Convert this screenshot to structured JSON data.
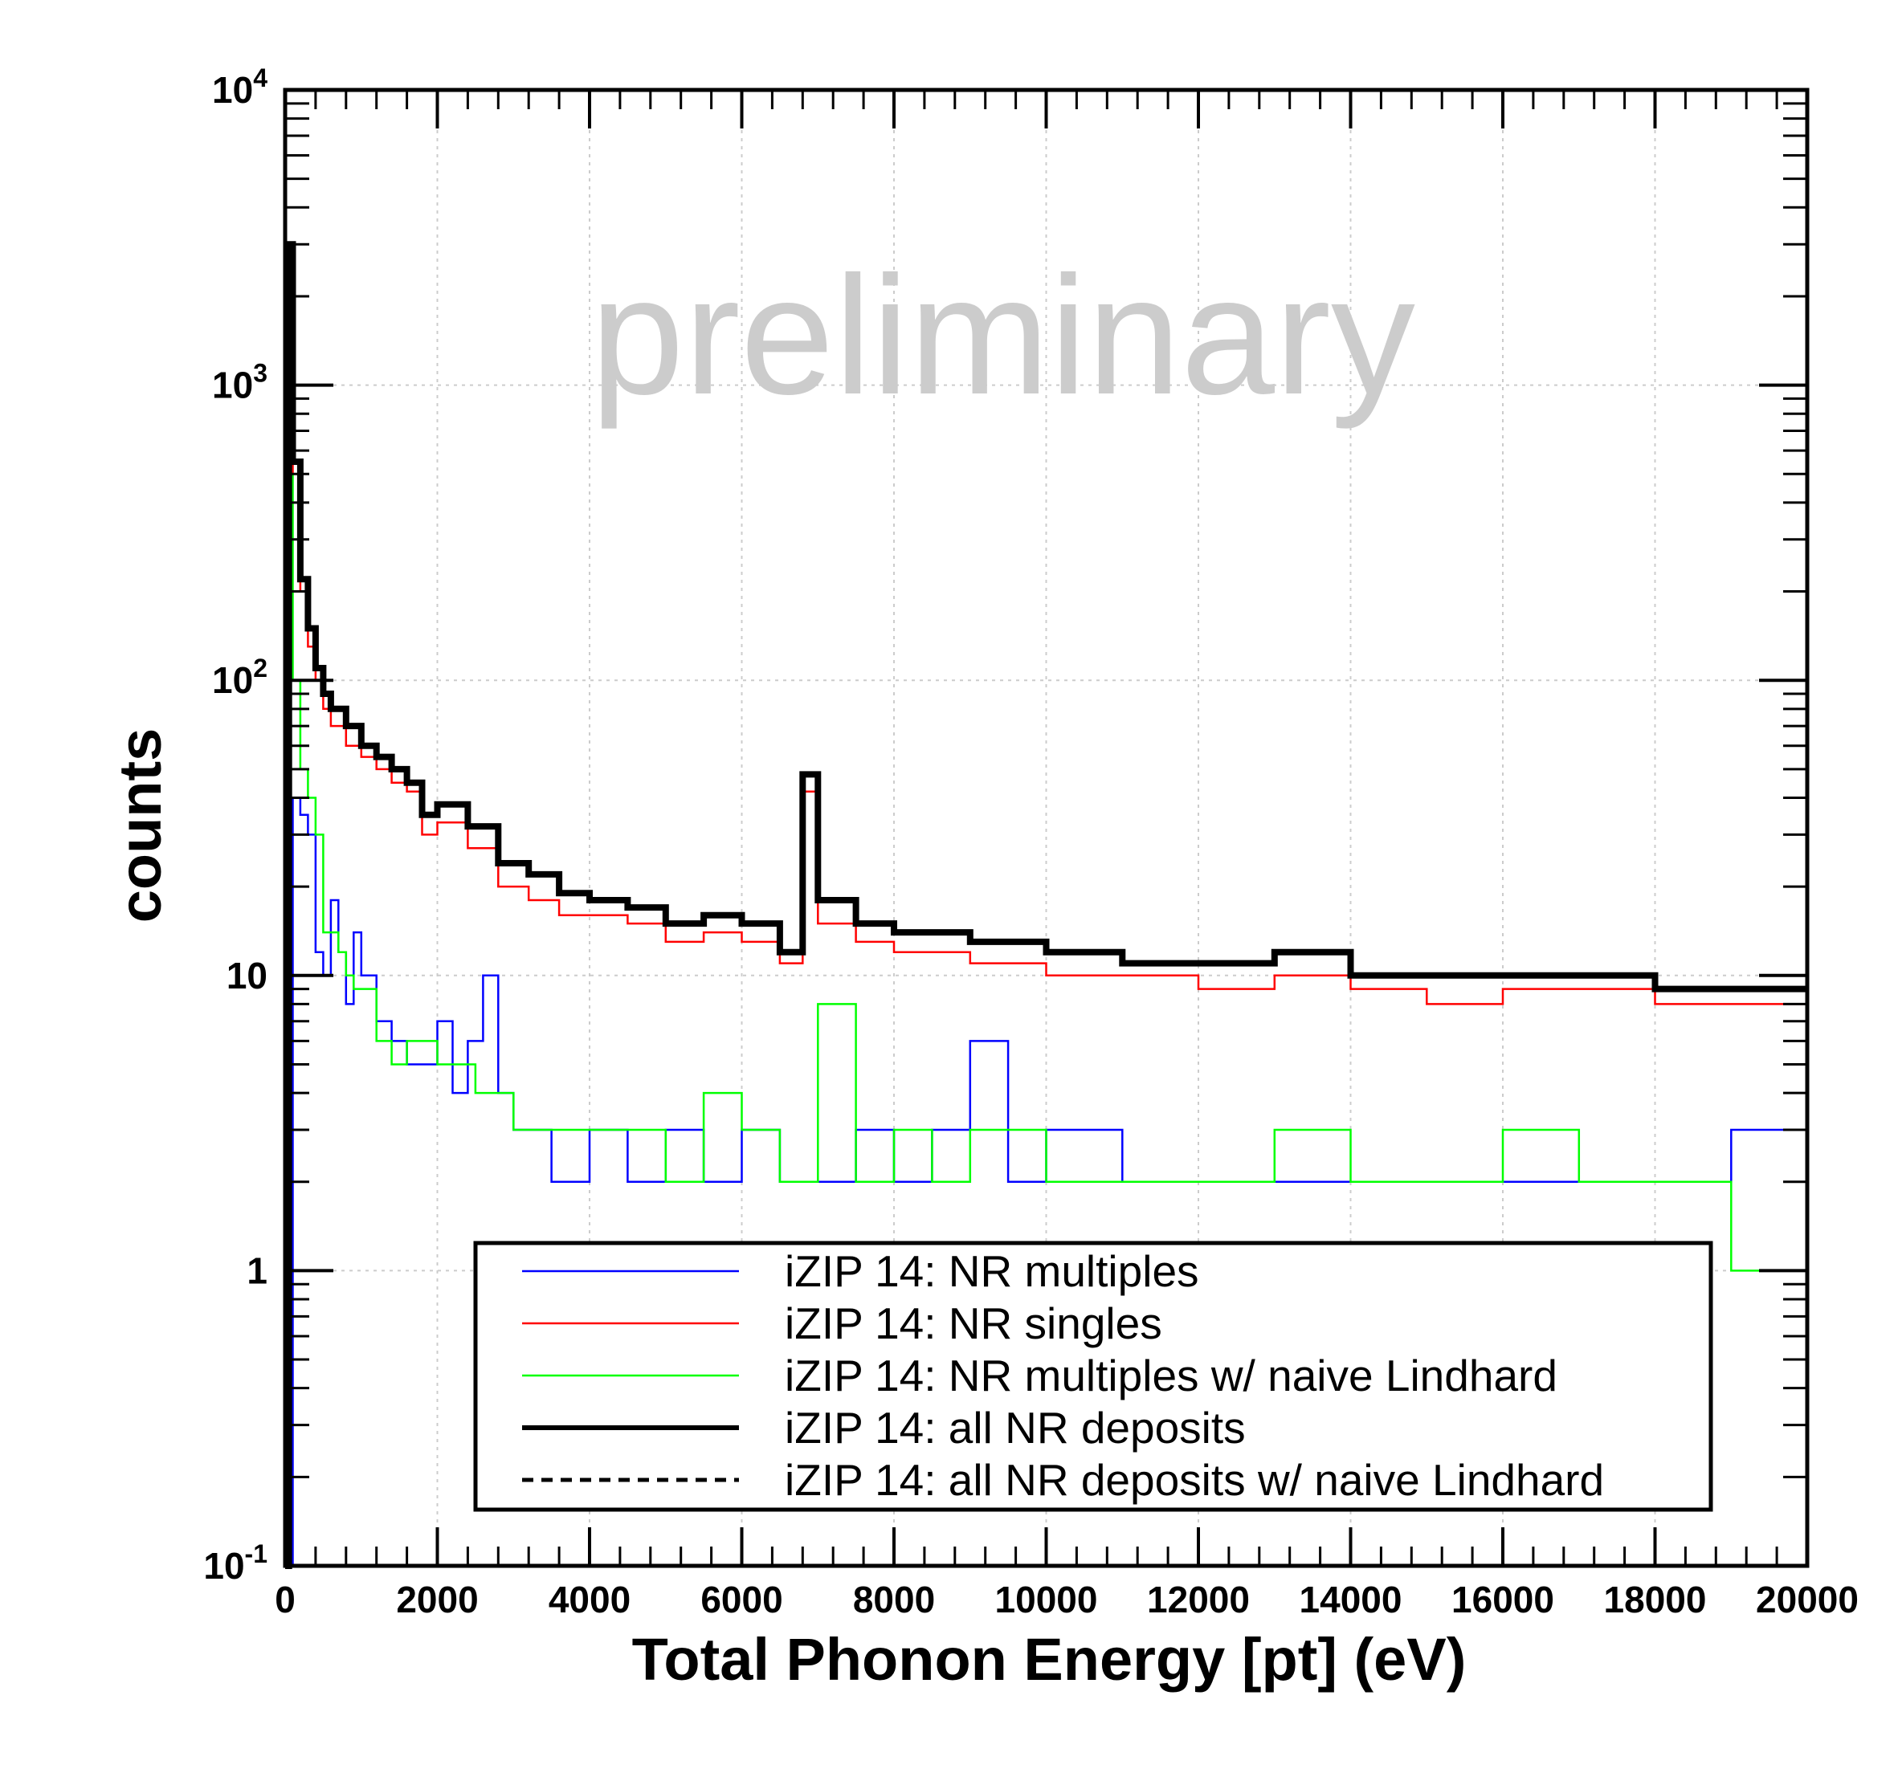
{
  "chart_data": {
    "type": "line",
    "xlabel": "Total Phonon Energy [pt] (eV)",
    "ylabel": "counts",
    "watermark": "preliminary",
    "xlim": [
      0,
      20000
    ],
    "ylim": [
      0.1,
      10000
    ],
    "yscale": "log",
    "grid": true,
    "legend_position": "bottom-right",
    "x_ticks": [
      {
        "value": 0,
        "label": "0"
      },
      {
        "value": 2000,
        "label": "2000"
      },
      {
        "value": 4000,
        "label": "4000"
      },
      {
        "value": 6000,
        "label": "6000"
      },
      {
        "value": 8000,
        "label": "8000"
      },
      {
        "value": 10000,
        "label": "10000"
      },
      {
        "value": 12000,
        "label": "12000"
      },
      {
        "value": 14000,
        "label": "14000"
      },
      {
        "value": 16000,
        "label": "16000"
      },
      {
        "value": 18000,
        "label": "18000"
      },
      {
        "value": 20000,
        "label": "20000"
      }
    ],
    "y_ticks": [
      {
        "value": 0.1,
        "base": "10",
        "exp": "-1",
        "label": ""
      },
      {
        "value": 1,
        "base": "",
        "exp": "",
        "label": "1"
      },
      {
        "value": 10,
        "base": "",
        "exp": "",
        "label": "10"
      },
      {
        "value": 100,
        "base": "10",
        "exp": "2",
        "label": ""
      },
      {
        "value": 1000,
        "base": "10",
        "exp": "3",
        "label": ""
      },
      {
        "value": 10000,
        "base": "10",
        "exp": "4",
        "label": ""
      }
    ],
    "series": [
      {
        "name": "iZIP 14: NR multiples",
        "color": "#0000ff",
        "style": "thin",
        "x": [
          0,
          100,
          200,
          300,
          400,
          500,
          600,
          700,
          800,
          900,
          1000,
          1200,
          1400,
          1600,
          1800,
          2000,
          2200,
          2400,
          2600,
          2800,
          3000,
          3500,
          4000,
          4500,
          5000,
          5500,
          6000,
          6500,
          7000,
          7500,
          8000,
          8500,
          9000,
          9500,
          10000,
          11000,
          12000,
          13000,
          14000,
          15000,
          16000,
          17000,
          18000,
          19000,
          20000
        ],
        "y": [
          0.1,
          40,
          35,
          30,
          12,
          10,
          18,
          12,
          8,
          14,
          10,
          7,
          6,
          5,
          5,
          7,
          4,
          6,
          10,
          4,
          3,
          2,
          3,
          2,
          3,
          2,
          3,
          2,
          2,
          3,
          2,
          3,
          6,
          2,
          3,
          2,
          2,
          2,
          2,
          2,
          2,
          2,
          2,
          3,
          3
        ]
      },
      {
        "name": "iZIP 14: NR singles",
        "color": "#ff0000",
        "style": "thin",
        "x": [
          0,
          50,
          100,
          200,
          300,
          400,
          500,
          600,
          800,
          1000,
          1200,
          1400,
          1600,
          1800,
          2000,
          2400,
          2800,
          3200,
          3600,
          4000,
          4500,
          5000,
          5500,
          6000,
          6500,
          6800,
          7000,
          7500,
          8000,
          9000,
          10000,
          11000,
          12000,
          13000,
          14000,
          15000,
          16000,
          17000,
          18000,
          19000,
          20000
        ],
        "y": [
          0.1,
          1500,
          500,
          200,
          130,
          100,
          80,
          70,
          60,
          55,
          50,
          45,
          42,
          30,
          33,
          27,
          20,
          18,
          16,
          16,
          15,
          13,
          14,
          13,
          11,
          42,
          15,
          13,
          12,
          11,
          10,
          10,
          9,
          10,
          9,
          8,
          9,
          9,
          8,
          8,
          8
        ]
      },
      {
        "name": "iZIP 14: NR multiples w/ naive Lindhard",
        "color": "#00ff00",
        "style": "thin",
        "x": [
          0,
          50,
          100,
          200,
          300,
          400,
          500,
          600,
          700,
          800,
          900,
          1000,
          1200,
          1400,
          1600,
          2000,
          2500,
          3000,
          3500,
          4000,
          4500,
          5000,
          5500,
          6000,
          6500,
          7000,
          7500,
          8000,
          8500,
          9000,
          10000,
          11000,
          12000,
          13000,
          14000,
          15000,
          16000,
          17000,
          18000,
          19000,
          20000
        ],
        "y": [
          0.1,
          500,
          100,
          50,
          40,
          30,
          14,
          14,
          12,
          10,
          9,
          9,
          6,
          5,
          6,
          5,
          4,
          3,
          3,
          3,
          3,
          2,
          4,
          3,
          2,
          8,
          2,
          3,
          2,
          3,
          2,
          2,
          2,
          3,
          2,
          2,
          3,
          2,
          2,
          1,
          1
        ]
      },
      {
        "name": "iZIP 14: all NR deposits",
        "color": "#000000",
        "style": "thick",
        "x": [
          0,
          50,
          100,
          200,
          300,
          400,
          500,
          600,
          800,
          1000,
          1200,
          1400,
          1600,
          1800,
          2000,
          2400,
          2800,
          3200,
          3600,
          4000,
          4500,
          5000,
          5500,
          6000,
          6500,
          6800,
          7000,
          7500,
          8000,
          9000,
          10000,
          11000,
          12000,
          13000,
          14000,
          15000,
          16000,
          17000,
          18000,
          19000,
          20000
        ],
        "y": [
          0.1,
          3000,
          550,
          220,
          150,
          110,
          90,
          80,
          70,
          60,
          55,
          50,
          45,
          35,
          38,
          32,
          24,
          22,
          19,
          18,
          17,
          15,
          16,
          15,
          12,
          48,
          18,
          15,
          14,
          13,
          12,
          11,
          11,
          12,
          10,
          10,
          10,
          10,
          9,
          9,
          9
        ]
      },
      {
        "name": "iZIP 14: all NR deposits w/ naive Lindhard",
        "color": "#000000",
        "style": "dashed",
        "x": [
          0,
          50,
          100,
          200,
          300,
          400,
          500,
          600,
          800,
          1000,
          1200,
          1400,
          1600,
          1800,
          2000,
          2400,
          2800,
          3200,
          3600,
          4000,
          4500,
          5000,
          5500,
          6000,
          6500,
          6800,
          7000,
          7500,
          8000,
          9000,
          10000,
          11000,
          12000,
          13000,
          14000,
          15000,
          16000,
          17000,
          18000,
          19000,
          20000
        ],
        "y": [
          0.1,
          3000,
          550,
          220,
          150,
          110,
          90,
          80,
          70,
          60,
          55,
          50,
          45,
          35,
          38,
          32,
          24,
          22,
          19,
          18,
          17,
          15,
          16,
          15,
          12,
          48,
          18,
          15,
          14,
          13,
          12,
          11,
          11,
          12,
          10,
          10,
          10,
          10,
          9,
          9,
          9
        ]
      }
    ]
  }
}
